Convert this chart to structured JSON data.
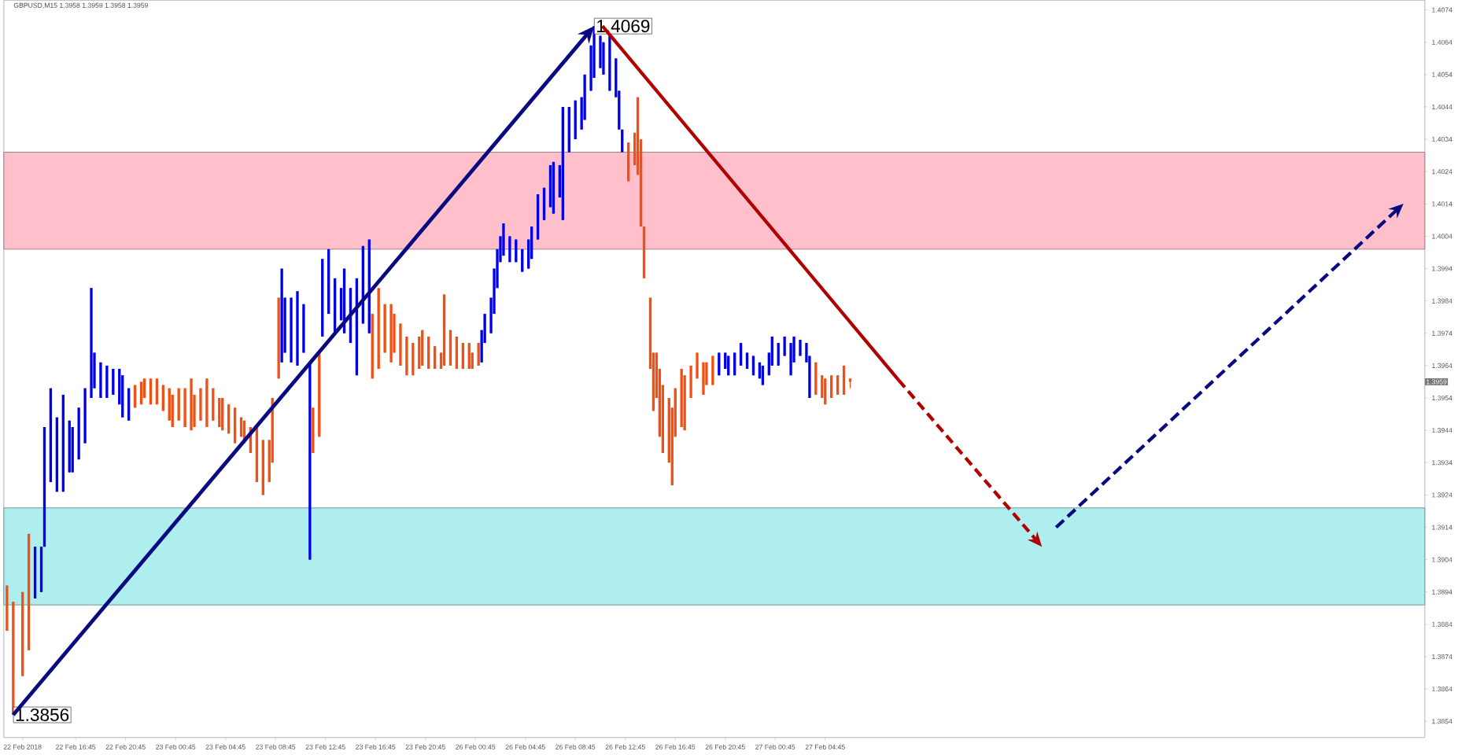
{
  "chart_data": {
    "type": "candlestick",
    "title": "GBPUSD,M15  1.3958 1.3959 1.3958 1.3959",
    "categories": [
      null,
      null,
      null,
      null,
      null,
      "22 Feb 2018",
      null,
      null,
      null,
      null,
      null,
      null,
      null,
      null,
      null,
      null,
      null,
      null,
      null,
      null,
      null,
      null,
      "22 Feb 16:45",
      null,
      null,
      null,
      null,
      null,
      null,
      null,
      null,
      null,
      null,
      null,
      null,
      null,
      null,
      null,
      "22 Feb 20:45",
      null,
      null,
      null,
      null,
      null,
      null,
      null,
      null,
      null,
      null,
      null,
      null,
      null,
      null,
      null,
      "23 Feb 00:45",
      null,
      null,
      null,
      null,
      null,
      null,
      null,
      null,
      null,
      null,
      null,
      null,
      null,
      null,
      null,
      "23 Feb 04:45",
      null,
      null,
      null,
      null,
      null,
      null,
      null,
      null,
      null,
      null,
      null,
      null,
      null,
      null,
      null,
      "23 Feb 08:45",
      null,
      null,
      null,
      null,
      null,
      null,
      null,
      null,
      null,
      null,
      null,
      null,
      null,
      null,
      null,
      "23 Feb 12:45",
      null,
      null,
      null,
      null,
      null,
      null,
      null,
      null,
      null,
      null,
      null,
      null,
      null,
      null,
      null,
      "23 Feb 16:45",
      null,
      null,
      null,
      null,
      null,
      null,
      null,
      null,
      null,
      null,
      null,
      null,
      null,
      null,
      null,
      "23 Feb 20:45",
      null,
      null,
      null,
      null,
      null,
      null,
      null,
      null,
      null,
      null,
      null,
      null,
      null,
      null,
      null,
      "26 Feb 00:45",
      null,
      null,
      null,
      null,
      null,
      null,
      null,
      null,
      null,
      null,
      null,
      null,
      null,
      null,
      null,
      "26 Feb 04:45",
      null,
      null,
      null,
      null,
      null,
      null,
      null,
      null,
      null,
      null,
      null,
      null,
      null,
      null,
      null,
      "26 Feb 08:45",
      null,
      null,
      null,
      null,
      null,
      null,
      null,
      null,
      null,
      null,
      null,
      null,
      null,
      null,
      null,
      "26 Feb 12:45",
      null,
      null,
      null,
      null,
      null,
      null,
      null,
      null,
      null,
      null,
      null,
      null,
      null,
      null,
      null,
      "26 Feb 16:45",
      null,
      null,
      null,
      null,
      null,
      null,
      null,
      null,
      null,
      null,
      null,
      null,
      null,
      null,
      null,
      "26 Feb 20:45",
      null,
      null,
      null,
      null,
      null,
      null,
      null,
      null,
      null,
      null,
      null,
      null,
      null,
      null,
      null,
      "27 Feb 00:45",
      null,
      null,
      null,
      null,
      null,
      null,
      null,
      null,
      null,
      null,
      null,
      null,
      null,
      null,
      null,
      "27 Feb 04:45",
      null,
      null,
      null,
      null,
      null,
      null,
      null,
      null,
      null,
      null,
      null,
      null,
      null,
      null,
      null,
      null,
      null,
      null,
      null,
      null,
      null,
      null,
      null,
      null,
      null,
      null,
      null,
      null,
      null,
      null,
      null,
      null,
      null,
      null,
      null,
      null,
      null,
      null,
      null,
      null,
      null,
      null,
      null,
      null,
      null,
      null,
      null,
      null,
      null,
      null,
      null,
      null,
      null,
      null,
      null,
      null,
      null,
      null,
      null,
      null,
      null,
      null,
      null,
      null,
      null,
      null,
      null,
      null,
      null,
      null,
      null,
      null,
      null,
      null,
      null,
      null,
      null,
      null,
      null,
      null,
      null,
      null,
      null,
      null,
      null,
      null,
      null,
      null,
      null,
      null,
      null,
      null,
      null,
      null,
      null,
      null,
      null,
      null,
      null,
      null,
      null,
      null,
      null,
      null,
      null,
      null,
      null,
      null,
      null,
      null,
      null,
      null,
      null,
      null,
      null,
      null,
      null,
      null,
      null,
      null,
      null,
      null,
      null,
      null,
      null,
      null,
      null,
      null,
      null,
      null,
      null,
      null,
      null,
      null,
      null,
      null,
      null,
      null,
      null,
      null,
      null,
      null,
      null,
      null,
      null,
      null,
      null,
      null,
      null,
      null,
      null,
      null,
      null,
      null,
      null,
      null,
      null,
      null,
      null,
      null,
      null,
      null,
      null,
      null,
      null,
      null,
      null,
      null,
      null,
      null,
      null,
      null,
      null,
      null,
      null,
      null,
      null,
      null,
      null,
      null,
      null,
      null,
      null,
      null,
      null,
      null,
      null,
      null,
      null,
      null,
      null
    ],
    "ylim": [
      1.3849,
      1.4077
    ],
    "yticks": [
      1.3854,
      1.3864,
      1.3874,
      1.3884,
      1.3894,
      1.3904,
      1.3914,
      1.3924,
      1.3934,
      1.3944,
      1.3954,
      1.3964,
      1.3974,
      1.3984,
      1.3994,
      1.4004,
      1.4014,
      1.4024,
      1.4034,
      1.4044,
      1.4054,
      1.4064,
      1.4074
    ],
    "bands": [
      {
        "axis": "y",
        "from": 1.4,
        "to": 1.403,
        "color": "#ffc0cb"
      },
      {
        "axis": "y",
        "from": 1.389,
        "to": 1.392,
        "color": "#afeeee"
      }
    ],
    "annotations": [
      "1.4069",
      "1.3856",
      "1.3959"
    ],
    "series": [
      {
        "color": "#0000e6",
        "ohlc": [
          null,
          null,
          null,
          null,
          null,
          null,
          null,
          null,
          null,
          [
            1.3892,
            1.3908,
            1.3892,
            1.3908
          ],
          null,
          [
            1.3894,
            1.3908,
            1.3894,
            1.3908
          ],
          [
            1.3908,
            1.3945,
            1.3908,
            1.3945
          ],
          null,
          [
            1.3928,
            1.3957,
            1.3928,
            1.3957
          ],
          null,
          [
            1.3925,
            1.3948,
            1.3925,
            1.3948
          ],
          null,
          [
            1.3925,
            1.3955,
            1.3925,
            1.3955
          ],
          null,
          [
            1.3931,
            1.3947,
            1.3931,
            1.3947
          ],
          [
            1.3931,
            1.3945,
            1.3931,
            1.3945
          ],
          null,
          [
            1.3935,
            1.3951,
            1.3935,
            1.3951
          ],
          null,
          [
            1.394,
            1.3957,
            1.394,
            1.3957
          ],
          null,
          [
            1.3954,
            1.3988,
            1.3954,
            1.3988
          ],
          [
            1.3957,
            1.3968,
            1.3957,
            1.3968
          ],
          null,
          [
            1.3954,
            1.3965,
            1.3954,
            1.3965
          ],
          null,
          [
            1.3954,
            1.3964,
            1.3954,
            1.3964
          ],
          null,
          [
            1.3955,
            1.3963,
            1.3955,
            1.3963
          ],
          null,
          [
            1.3952,
            1.3963,
            1.3952,
            1.3963
          ],
          [
            1.3948,
            1.3961,
            1.3948,
            1.3961
          ],
          null,
          [
            1.3947,
            1.3957,
            1.3947,
            1.3957
          ],
          null,
          null,
          null,
          null,
          null,
          null,
          null,
          null,
          null,
          null,
          null,
          null,
          null,
          null,
          null,
          null,
          null,
          null,
          null,
          null,
          null,
          null,
          null,
          null,
          null,
          null,
          null,
          null,
          null,
          null,
          null,
          null,
          null,
          null,
          null,
          null,
          null,
          null,
          null,
          null,
          null,
          null,
          null,
          null,
          null,
          null,
          null,
          null,
          [
            1.3965,
            1.3994,
            1.3965,
            1.3994
          ],
          [
            1.3968,
            1.3985,
            1.3968,
            1.3985
          ],
          null,
          [
            1.3965,
            1.3985,
            1.3965,
            1.3985
          ],
          null,
          [
            1.3964,
            1.3987,
            1.3964,
            1.3987
          ],
          null,
          [
            1.3968,
            1.3983,
            1.3968,
            1.3983
          ],
          null,
          [
            1.3904,
            1.3965,
            1.3904,
            1.3965
          ],
          null,
          null,
          null,
          [
            1.3973,
            1.3997,
            1.3973,
            1.3997
          ],
          null,
          [
            1.398,
            1.4,
            1.398,
            1.4
          ],
          null,
          [
            1.3974,
            1.3991,
            1.3974,
            1.3991
          ],
          null,
          [
            1.3978,
            1.3988,
            1.3978,
            1.3988
          ],
          [
            1.3974,
            1.3994,
            1.3974,
            1.3994
          ],
          null,
          [
            1.3971,
            1.3988,
            1.3971,
            1.3988
          ],
          null,
          [
            1.3961,
            1.3991,
            1.3961,
            1.3991
          ],
          null,
          [
            1.3977,
            1.4001,
            1.3977,
            1.4001
          ],
          null,
          [
            1.3974,
            1.4003,
            1.3974,
            1.4003
          ],
          null,
          null,
          null,
          null,
          null,
          null,
          null,
          null,
          null,
          null,
          null,
          null,
          null,
          null,
          null,
          null,
          null,
          null,
          null,
          null,
          null,
          null,
          null,
          null,
          null,
          null,
          null,
          null,
          null,
          null,
          null,
          null,
          null,
          null,
          null,
          [
            1.3965,
            1.3975,
            1.3965,
            1.3975
          ],
          [
            1.3971,
            1.398,
            1.3971,
            1.398
          ],
          null,
          [
            1.3974,
            1.3985,
            1.3974,
            1.3985
          ],
          [
            1.398,
            1.3994,
            1.398,
            1.3994
          ],
          [
            1.3988,
            1.4,
            1.3988,
            1.4
          ],
          [
            1.3996,
            1.4004,
            1.3996,
            1.4004
          ],
          [
            1.3998,
            1.4008,
            1.3998,
            1.4008
          ],
          null,
          [
            1.3996,
            1.4004,
            1.3996,
            1.4004
          ],
          null,
          [
            1.3996,
            1.4003,
            1.3996,
            1.4003
          ],
          null,
          [
            1.3993,
            1.4,
            1.3993,
            1.4
          ],
          null,
          [
            1.3994,
            1.4003,
            1.3994,
            1.4003
          ],
          [
            1.3997,
            1.4007,
            1.3997,
            1.4007
          ],
          null,
          [
            1.4003,
            1.4017,
            1.4003,
            1.4017
          ],
          null,
          [
            1.4009,
            1.4019,
            1.4009,
            1.4019
          ],
          null,
          [
            1.4013,
            1.4026,
            1.4013,
            1.4026
          ],
          [
            1.4011,
            1.4027,
            1.4011,
            1.4027
          ],
          null,
          [
            1.4016,
            1.4026,
            1.4016,
            1.4026
          ],
          [
            1.4009,
            1.4044,
            1.4009,
            1.4044
          ],
          null,
          [
            1.403,
            1.4044,
            1.403,
            1.4044
          ],
          null,
          [
            1.4034,
            1.4046,
            1.4034,
            1.4046
          ],
          null,
          [
            1.4037,
            1.4047,
            1.4037,
            1.4047
          ],
          [
            1.404,
            1.4054,
            1.404,
            1.4054
          ],
          null,
          [
            1.4049,
            1.4063,
            1.4049,
            1.4063
          ],
          [
            1.4053,
            1.4069,
            1.4053,
            1.4069
          ],
          null,
          [
            1.4056,
            1.4066,
            1.4056,
            1.4066
          ],
          [
            1.4054,
            1.4064,
            1.4054,
            1.4064
          ],
          null,
          [
            1.4049,
            1.4066,
            1.4049,
            1.4066
          ],
          null,
          [
            1.4047,
            1.4059,
            1.4047,
            1.4059
          ],
          [
            1.4037,
            1.4049,
            1.4037,
            1.4049
          ],
          [
            1.403,
            1.4037,
            1.403,
            1.4037
          ],
          null,
          null,
          null,
          null,
          null,
          null,
          null,
          null,
          null,
          null,
          null,
          null,
          null,
          null,
          null,
          null,
          null,
          null,
          null,
          null,
          null,
          null,
          null,
          null,
          null,
          null,
          null,
          null,
          null,
          null,
          [
            1.3961,
            1.3968,
            1.3961,
            1.3968
          ],
          null,
          [
            1.3963,
            1.3968,
            1.3963,
            1.3968
          ],
          [
            1.3961,
            1.3967,
            1.3961,
            1.3967
          ],
          null,
          [
            1.3961,
            1.3968,
            1.3961,
            1.3968
          ],
          null,
          [
            1.3964,
            1.3971,
            1.3964,
            1.3971
          ],
          null,
          [
            1.3963,
            1.3968,
            1.3963,
            1.3968
          ],
          null,
          [
            1.3961,
            1.3967,
            1.3961,
            1.3967
          ],
          null,
          [
            1.396,
            1.3965,
            1.396,
            1.3965
          ],
          [
            1.3958,
            1.3964,
            1.3958,
            1.3964
          ],
          null,
          [
            1.3961,
            1.3968,
            1.3961,
            1.3968
          ],
          [
            1.3964,
            1.3973,
            1.3964,
            1.3973
          ],
          null,
          [
            1.3964,
            1.3971,
            1.3964,
            1.3971
          ],
          null,
          [
            1.3967,
            1.3973,
            1.3967,
            1.3973
          ],
          null,
          [
            1.3961,
            1.3971,
            1.3961,
            1.3971
          ],
          [
            1.3965,
            1.3973,
            1.3965,
            1.3973
          ],
          null,
          [
            1.3967,
            1.3972,
            1.3967,
            1.3972
          ],
          null,
          [
            1.3965,
            1.3971,
            1.3965,
            1.3971
          ],
          [
            1.3954,
            1.3967,
            1.3954,
            1.3967
          ],
          null,
          null,
          null,
          null,
          null,
          null,
          null,
          null,
          null,
          null,
          null,
          null,
          null,
          null,
          null,
          null,
          null,
          null,
          null,
          null,
          null,
          null,
          null,
          null,
          null,
          null,
          null,
          null,
          null,
          null,
          null,
          null,
          null,
          null,
          null,
          null,
          null,
          null,
          null,
          null,
          null,
          null,
          null,
          null,
          null,
          null,
          null,
          null,
          null,
          null,
          null,
          null,
          null,
          null,
          null,
          null,
          null,
          null,
          null,
          null,
          null,
          null,
          null,
          null,
          null,
          null,
          null,
          null,
          null,
          null,
          null,
          null,
          null,
          null,
          null,
          null,
          null,
          null,
          null,
          null,
          null,
          null,
          null,
          null,
          null,
          null,
          null,
          null,
          null,
          null,
          null,
          null,
          null,
          null,
          null,
          null,
          null,
          null,
          null,
          null,
          null,
          null,
          null,
          null,
          null,
          null,
          null,
          null,
          null,
          null,
          null,
          null,
          null,
          null,
          null,
          null,
          null,
          null,
          null,
          null,
          null,
          null,
          null,
          null,
          null,
          null,
          null,
          null,
          null,
          null,
          null,
          null,
          null,
          null,
          null,
          null,
          null,
          null,
          null,
          null,
          null,
          null,
          null,
          null,
          null,
          null,
          null,
          null,
          null,
          null,
          null,
          null,
          null,
          null,
          null,
          null,
          null,
          null,
          null,
          null,
          null,
          null,
          null,
          null,
          null,
          null,
          null,
          null,
          null,
          null,
          null,
          null,
          null,
          null,
          null,
          null,
          null,
          null,
          null,
          null,
          null,
          null,
          null,
          null,
          null,
          null,
          null,
          null,
          null,
          null,
          null,
          null,
          null,
          null,
          null,
          null
        ]
      },
      {
        "color": "#f05014",
        "ohlc": [
          [
            1.3896,
            1.3896,
            1.3882,
            1.3882
          ],
          null,
          [
            1.3891,
            1.3891,
            1.3856,
            1.3856
          ],
          null,
          null,
          [
            1.3894,
            1.3894,
            1.3868,
            1.3868
          ],
          null,
          [
            1.3912,
            1.3912,
            1.3876,
            1.3876
          ],
          null,
          null,
          null,
          null,
          null,
          null,
          null,
          null,
          null,
          null,
          null,
          null,
          null,
          null,
          null,
          null,
          null,
          null,
          null,
          null,
          null,
          null,
          null,
          null,
          null,
          null,
          null,
          null,
          null,
          null,
          null,
          null,
          null,
          [
            1.3958,
            1.3958,
            1.3951,
            1.3951
          ],
          null,
          [
            1.3959,
            1.3959,
            1.3952,
            1.3952
          ],
          [
            1.396,
            1.396,
            1.3954,
            1.3954
          ],
          null,
          [
            1.396,
            1.396,
            1.3952,
            1.3952
          ],
          null,
          [
            1.396,
            1.396,
            1.3952,
            1.3952
          ],
          null,
          [
            1.3958,
            1.3958,
            1.395,
            1.395
          ],
          null,
          [
            1.3957,
            1.3957,
            1.3947,
            1.3947
          ],
          [
            1.3955,
            1.3955,
            1.3945,
            1.3945
          ],
          null,
          [
            1.3957,
            1.3957,
            1.3947,
            1.3947
          ],
          null,
          [
            1.3957,
            1.3957,
            1.3945,
            1.3945
          ],
          null,
          [
            1.396,
            1.396,
            1.3944,
            1.3944
          ],
          [
            1.3955,
            1.3955,
            1.3945,
            1.3945
          ],
          null,
          [
            1.3957,
            1.3957,
            1.3947,
            1.3947
          ],
          null,
          [
            1.396,
            1.396,
            1.3945,
            1.3945
          ],
          null,
          [
            1.3957,
            1.3957,
            1.3947,
            1.3947
          ],
          null,
          [
            1.3954,
            1.3954,
            1.3945,
            1.3945
          ],
          [
            1.3954,
            1.3954,
            1.3944,
            1.3944
          ],
          null,
          [
            1.3952,
            1.3952,
            1.3943,
            1.3943
          ],
          null,
          [
            1.3951,
            1.3951,
            1.394,
            1.394
          ],
          null,
          [
            1.3948,
            1.3948,
            1.3942,
            1.3942
          ],
          [
            1.3947,
            1.3947,
            1.394,
            1.394
          ],
          null,
          [
            1.3945,
            1.3945,
            1.3937,
            1.3937
          ],
          null,
          [
            1.3945,
            1.3945,
            1.3928,
            1.3928
          ],
          null,
          [
            1.3941,
            1.3941,
            1.3924,
            1.3924
          ],
          null,
          [
            1.3941,
            1.3941,
            1.3928,
            1.3928
          ],
          [
            1.3954,
            1.3954,
            1.3934,
            1.3934
          ],
          null,
          [
            1.3985,
            1.3985,
            1.396,
            1.396
          ],
          null,
          null,
          null,
          null,
          null,
          null,
          null,
          null,
          null,
          null,
          [
            1.3951,
            1.3951,
            1.3937,
            1.3937
          ],
          null,
          [
            1.3968,
            1.3968,
            1.3942,
            1.3942
          ],
          null,
          null,
          null,
          null,
          null,
          null,
          null,
          null,
          null,
          null,
          null,
          null,
          null,
          null,
          null,
          null,
          [
            1.398,
            1.398,
            1.396,
            1.396
          ],
          null,
          [
            1.3988,
            1.3988,
            1.3963,
            1.3963
          ],
          null,
          [
            1.3983,
            1.3983,
            1.3968,
            1.3968
          ],
          null,
          [
            1.3983,
            1.3983,
            1.3965,
            1.3965
          ],
          [
            1.398,
            1.398,
            1.3968,
            1.3968
          ],
          null,
          [
            1.3977,
            1.3977,
            1.3964,
            1.3964
          ],
          null,
          [
            1.3973,
            1.3973,
            1.3961,
            1.3961
          ],
          null,
          [
            1.3971,
            1.3971,
            1.3961,
            1.3961
          ],
          null,
          [
            1.3973,
            1.3973,
            1.3963,
            1.3963
          ],
          [
            1.3975,
            1.3975,
            1.3964,
            1.3964
          ],
          null,
          [
            1.3973,
            1.3973,
            1.3963,
            1.3963
          ],
          null,
          [
            1.397,
            1.397,
            1.3963,
            1.3963
          ],
          null,
          [
            1.3968,
            1.3968,
            1.3963,
            1.3963
          ],
          [
            1.3986,
            1.3986,
            1.3964,
            1.3964
          ],
          null,
          [
            1.3975,
            1.3975,
            1.3964,
            1.3964
          ],
          null,
          [
            1.3973,
            1.3973,
            1.3963,
            1.3963
          ],
          null,
          [
            1.3971,
            1.3971,
            1.3963,
            1.3963
          ],
          null,
          [
            1.3971,
            1.3971,
            1.3963,
            1.3963
          ],
          [
            1.3968,
            1.3968,
            1.3963,
            1.3963
          ],
          null,
          [
            1.3971,
            1.3971,
            1.3964,
            1.3964
          ],
          null,
          null,
          null,
          null,
          null,
          null,
          null,
          null,
          null,
          null,
          null,
          null,
          null,
          null,
          null,
          null,
          null,
          null,
          null,
          null,
          null,
          null,
          null,
          null,
          null,
          null,
          null,
          null,
          null,
          null,
          null,
          null,
          null,
          null,
          null,
          null,
          null,
          null,
          null,
          null,
          null,
          null,
          null,
          null,
          null,
          null,
          null,
          [
            1.4033,
            1.4033,
            1.4021,
            1.4021
          ],
          null,
          [
            1.4036,
            1.4036,
            1.4026,
            1.4026
          ],
          [
            1.4047,
            1.4047,
            1.4023,
            1.4023
          ],
          [
            1.4034,
            1.4034,
            1.4007,
            1.4007
          ],
          [
            1.4007,
            1.4007,
            1.3991,
            1.3991
          ],
          null,
          [
            1.3985,
            1.3985,
            1.3963,
            1.3963
          ],
          [
            1.3968,
            1.3968,
            1.395,
            1.395
          ],
          [
            1.3968,
            1.3968,
            1.3954,
            1.3954
          ],
          [
            1.3963,
            1.3963,
            1.3942,
            1.3942
          ],
          [
            1.3958,
            1.3958,
            1.3937,
            1.3937
          ],
          null,
          [
            1.3954,
            1.3954,
            1.3934,
            1.3934
          ],
          [
            1.3951,
            1.3951,
            1.3927,
            1.3927
          ],
          [
            1.3957,
            1.3957,
            1.3942,
            1.3942
          ],
          null,
          [
            1.3963,
            1.3963,
            1.3945,
            1.3945
          ],
          [
            1.3961,
            1.3961,
            1.3944,
            1.3944
          ],
          null,
          [
            1.3964,
            1.3964,
            1.3954,
            1.3954
          ],
          null,
          [
            1.3968,
            1.3968,
            1.396,
            1.396
          ],
          null,
          [
            1.3965,
            1.3965,
            1.3955,
            1.3955
          ],
          [
            1.3965,
            1.3965,
            1.3958,
            1.3958
          ],
          null,
          [
            1.3967,
            1.3967,
            1.3958,
            1.3958
          ],
          null,
          null,
          null,
          null,
          null,
          null,
          null,
          null,
          null,
          null,
          null,
          null,
          null,
          null,
          null,
          null,
          null,
          null,
          null,
          null,
          null,
          null,
          null,
          null,
          null,
          null,
          null,
          null,
          null,
          null,
          null,
          null,
          [
            1.3965,
            1.3965,
            1.3955,
            1.3955
          ],
          null,
          [
            1.3961,
            1.3961,
            1.3954,
            1.3954
          ],
          [
            1.396,
            1.396,
            1.3952,
            1.3952
          ],
          null,
          [
            1.3961,
            1.3961,
            1.3954,
            1.3954
          ],
          null,
          [
            1.3961,
            1.3961,
            1.3955,
            1.3955
          ],
          null,
          [
            1.3964,
            1.3964,
            1.3955,
            1.3955
          ],
          null,
          [
            1.396,
            1.396,
            1.3957,
            1.3959
          ],
          null,
          null,
          null,
          null,
          null,
          null,
          null,
          null,
          null,
          null,
          null,
          null,
          null,
          null,
          null,
          null,
          null,
          null,
          null,
          null,
          null,
          null,
          null,
          null,
          null,
          null,
          null,
          null,
          null,
          null,
          null,
          null,
          null,
          null,
          null,
          null,
          null,
          null,
          null,
          null,
          null,
          null,
          null,
          null,
          null,
          null,
          null,
          null,
          null,
          null,
          null,
          null,
          null,
          null,
          null,
          null,
          null,
          null,
          null,
          null,
          null,
          null,
          null,
          null,
          null,
          null,
          null,
          null,
          null,
          null,
          null,
          null,
          null,
          null,
          null,
          null,
          null,
          null,
          null,
          null,
          null,
          null,
          null,
          null,
          null,
          null,
          null,
          null,
          null,
          null,
          null,
          null,
          null,
          null,
          null,
          null,
          null,
          null,
          null,
          null,
          null,
          null,
          null,
          null,
          null,
          null,
          null,
          null,
          null,
          null,
          null,
          null,
          null,
          null,
          null,
          null,
          null,
          null,
          null,
          null,
          null,
          null,
          null,
          null,
          null,
          null,
          null,
          null,
          null,
          null,
          null,
          null,
          null,
          null,
          null,
          null,
          null,
          null,
          null,
          null,
          null,
          null,
          null,
          null,
          null,
          null,
          null,
          null,
          null,
          null,
          null,
          null,
          null,
          null,
          null,
          null,
          null,
          null,
          null,
          null,
          null,
          null,
          null,
          null,
          null,
          null,
          null,
          null,
          null,
          null,
          null,
          null,
          null,
          null,
          null,
          null,
          null,
          null,
          null,
          null,
          null,
          null,
          null
        ]
      }
    ]
  }
}
